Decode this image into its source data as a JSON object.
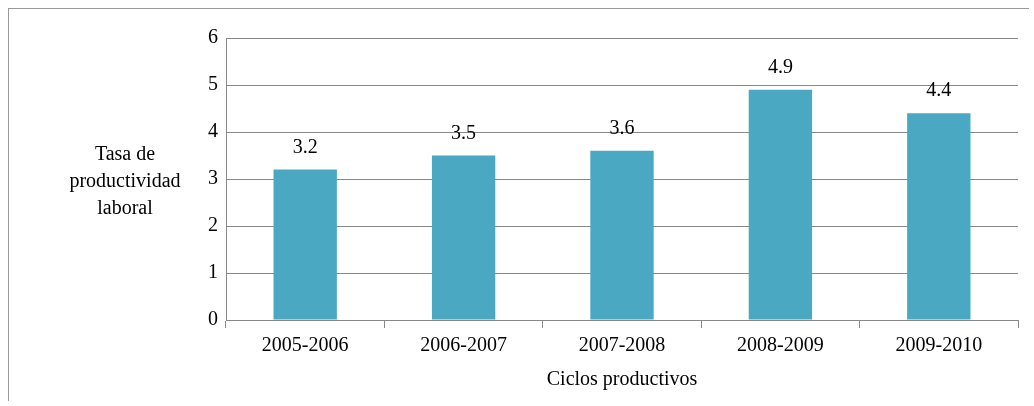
{
  "chart_data": {
    "type": "bar",
    "categories": [
      "2005-2006",
      "2006-2007",
      "2007-2008",
      "2008-2009",
      "2009-2010"
    ],
    "values": [
      3.2,
      3.5,
      3.6,
      4.9,
      4.4
    ],
    "color": "#4aa8c2",
    "xlabel": "Ciclos productivos",
    "ylabel": "Tasa de productividad laboral",
    "ylim": [
      0,
      6
    ],
    "yticks": [
      0,
      1,
      2,
      3,
      4,
      5,
      6
    ],
    "grid": "y",
    "legend": false,
    "data_labels": true
  }
}
